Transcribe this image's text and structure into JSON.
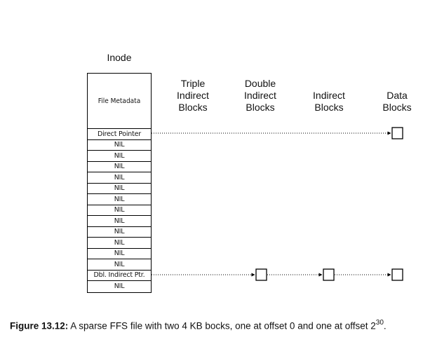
{
  "inode": {
    "title": "Inode",
    "metadata_label": "File Metadata",
    "slots": [
      "Direct Pointer",
      "NIL",
      "NIL",
      "NIL",
      "NIL",
      "NIL",
      "NIL",
      "NIL",
      "NIL",
      "NIL",
      "NIL",
      "NIL",
      "NIL",
      "Dbl. Indirect Ptr.",
      "NIL"
    ]
  },
  "columns": {
    "triple": "Triple\nIndirect\nBlocks",
    "double": "Double\nIndirect\nBlocks",
    "indirect": "Indirect\nBlocks",
    "data": "Data\nBlocks"
  },
  "caption": {
    "label": "Figure 13.12:",
    "text": " A sparse FFS file with two 4 KB bocks, one at offset 0 and one at offset 2",
    "exponent": "30",
    "end": "."
  }
}
